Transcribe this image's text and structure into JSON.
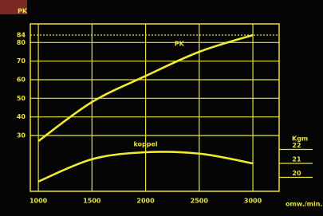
{
  "chart_data": {
    "type": "line",
    "y_label": "PK",
    "y2_label": "Kgm",
    "x_label": "omw./min.",
    "x": [
      1000,
      1500,
      2000,
      2500,
      3000
    ],
    "xlim": [
      925,
      3245
    ],
    "xticks": [
      1000,
      1500,
      2000,
      2500,
      3000
    ],
    "ylim": [
      0,
      90
    ],
    "yticks": [
      30,
      40,
      50,
      60,
      70,
      80,
      84
    ],
    "y2lim": [
      19,
      31
    ],
    "y2ticks": [
      20,
      21,
      22
    ],
    "grid": true,
    "series": [
      {
        "name": "PK",
        "color": "#f2ea2e",
        "values": [
          27,
          48,
          62,
          75,
          84
        ]
      },
      {
        "name": "koppel",
        "color": "#f2ea2e",
        "axis": "y2",
        "values": [
          19.7,
          21.3,
          21.8,
          21.7,
          21.0
        ]
      }
    ]
  }
}
